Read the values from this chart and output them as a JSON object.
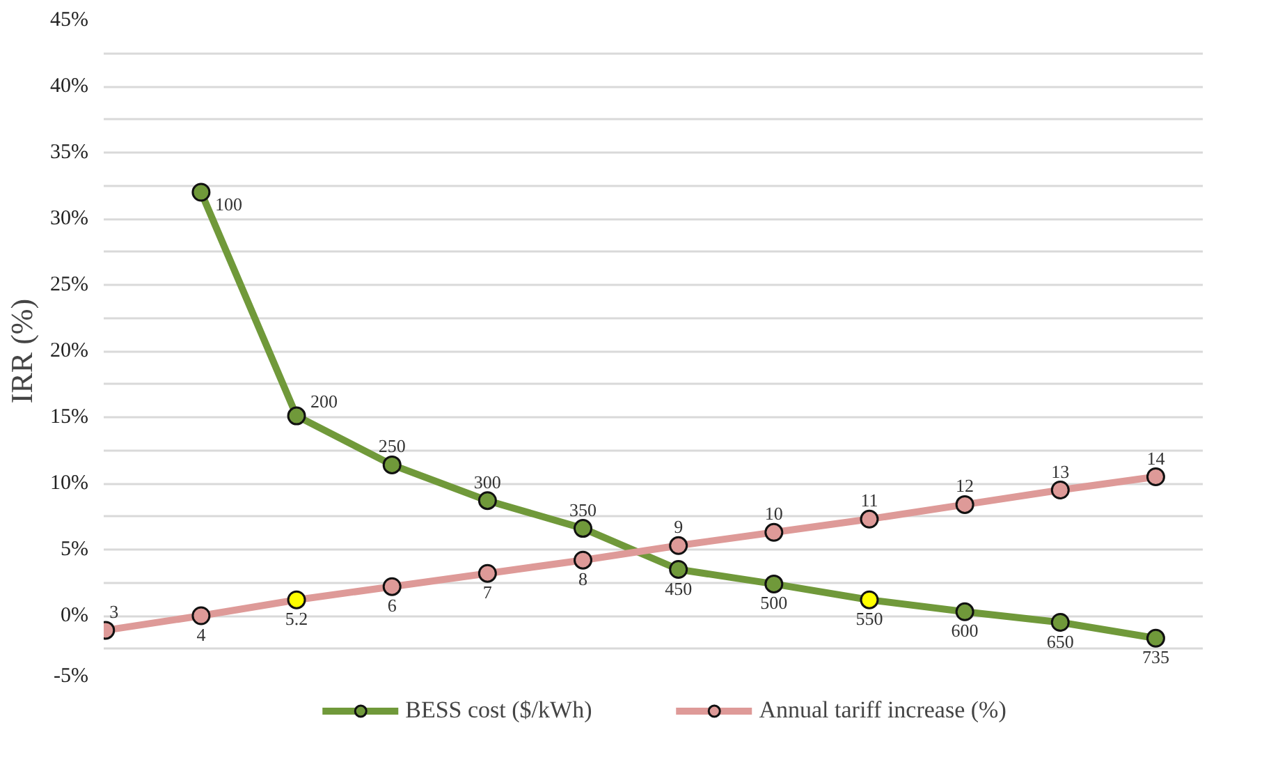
{
  "chart_data": {
    "type": "line",
    "ylabel": "IRR (%)",
    "categories": [
      null,
      null,
      null,
      null,
      null,
      null,
      null,
      null,
      null,
      null,
      null,
      null
    ],
    "ylim": [
      -5,
      45
    ],
    "yticks": [
      {
        "value": -5,
        "label": "-5%"
      },
      {
        "value": -2.5,
        "label": null
      },
      {
        "value": 0,
        "label": "0%"
      },
      {
        "value": 2.5,
        "label": null
      },
      {
        "value": 5,
        "label": "5%"
      },
      {
        "value": 7.5,
        "label": null
      },
      {
        "value": 10,
        "label": "10%"
      },
      {
        "value": 12.5,
        "label": null
      },
      {
        "value": 15,
        "label": "15%"
      },
      {
        "value": 17.5,
        "label": null
      },
      {
        "value": 20,
        "label": "20%"
      },
      {
        "value": 22.5,
        "label": null
      },
      {
        "value": 25,
        "label": "25%"
      },
      {
        "value": 27.5,
        "label": null
      },
      {
        "value": 30,
        "label": "30%"
      },
      {
        "value": 32.5,
        "label": null
      },
      {
        "value": 35,
        "label": "35%"
      },
      {
        "value": 37.5,
        "label": null
      },
      {
        "value": 40,
        "label": "40%"
      },
      {
        "value": 42.5,
        "label": null
      },
      {
        "value": 45,
        "label": "45%"
      }
    ],
    "tick_labels": "y",
    "grid": "y",
    "legend": "bottom",
    "marker": "circle",
    "line_style": "solid",
    "series": [
      {
        "name": "BESS cost ($/kWh)",
        "color": "#70993a",
        "values": [
          null,
          32.0,
          15.1,
          11.4,
          8.7,
          6.6,
          3.5,
          2.4,
          1.2,
          0.3,
          -0.5,
          -1.7
        ],
        "colors": [
          null,
          "#70993a",
          "#70993a",
          "#70993a",
          "#70993a",
          "#70993a",
          "#70993a",
          "#70993a",
          "#ffff00",
          "#70993a",
          "#70993a",
          "#70993a"
        ]
      },
      {
        "name": "Annual tariff increase (%)",
        "color": "#de9a98",
        "values": [
          -1.1,
          0,
          1.2,
          2.2,
          3.2,
          4.2,
          5.3,
          6.3,
          7.3,
          8.4,
          9.5,
          10.5
        ],
        "colors": [
          "#de9a98",
          "#de9a98",
          "#ffff00",
          "#de9a98",
          "#de9a98",
          "#de9a98",
          "#de9a98",
          "#de9a98",
          "#de9a98",
          "#de9a98",
          "#de9a98",
          "#de9a98"
        ]
      }
    ],
    "annotations": [
      "100",
      "200",
      "250",
      "300",
      "350",
      "450",
      "500",
      "550",
      "600",
      "650",
      "735",
      "3",
      "4",
      "5.2",
      "6",
      "7",
      "8",
      "9",
      "10",
      "11",
      "12",
      "13",
      "14"
    ]
  }
}
